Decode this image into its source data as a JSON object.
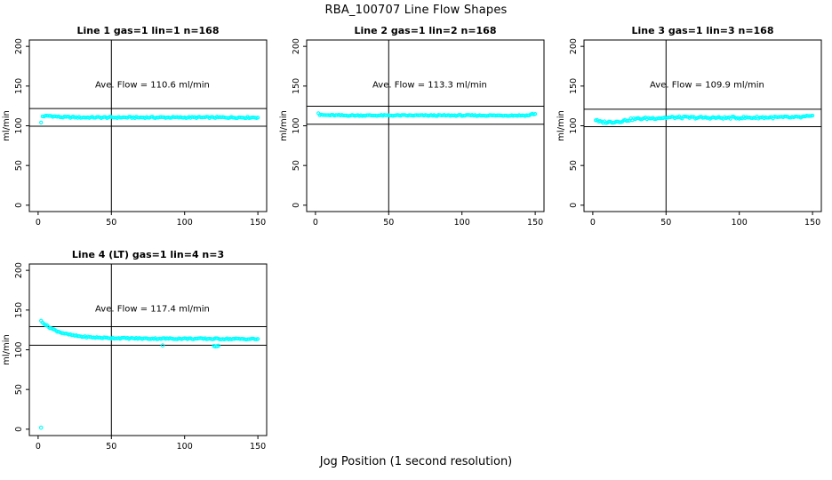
{
  "figure": {
    "title": "RBA_100707  Line Flow Shapes",
    "xlabel": "Jog Position (1 second resolution)",
    "background": "#ffffff",
    "point_color": "#00ffff",
    "line_color": "#000000"
  },
  "chart_data": [
    {
      "type": "scatter",
      "title": "Line 1 gas=1 lin=1 n=168",
      "annotation": "Ave. Flow =  110.6  ml/min",
      "ave_flow": 110.6,
      "ylabel": "ml/min",
      "xticks": [
        0,
        50,
        100,
        150
      ],
      "yticks": [
        0,
        50,
        100,
        150,
        200
      ],
      "xlim": [
        0,
        150
      ],
      "ylim": [
        0,
        200
      ],
      "vline_x": 50,
      "hlines": [
        121.7,
        99.5
      ],
      "x_start": 2,
      "x_end": 150,
      "x_step": 1,
      "noise": 0.9,
      "profile": [
        [
          2,
          104
        ],
        [
          3,
          112
        ],
        [
          8,
          112.5
        ],
        [
          15,
          111
        ],
        [
          30,
          110.5
        ],
        [
          150,
          110.5
        ]
      ],
      "outliers": []
    },
    {
      "type": "scatter",
      "title": "Line 2 gas=1 lin=2 n=168",
      "annotation": "Ave. Flow =  113.3  ml/min",
      "ave_flow": 113.3,
      "ylabel": "ml/min",
      "xticks": [
        0,
        50,
        100,
        150
      ],
      "yticks": [
        0,
        50,
        100,
        150,
        200
      ],
      "xlim": [
        0,
        150
      ],
      "ylim": [
        0,
        200
      ],
      "vline_x": 50,
      "hlines": [
        124.6,
        102.0
      ],
      "x_start": 2,
      "x_end": 150,
      "x_step": 1,
      "noise": 0.7,
      "profile": [
        [
          2,
          116
        ],
        [
          3,
          113.5
        ],
        [
          20,
          113
        ],
        [
          145,
          113
        ],
        [
          148,
          114.8
        ],
        [
          150,
          114.8
        ]
      ],
      "outliers": []
    },
    {
      "type": "scatter",
      "title": "Line 3 gas=1 lin=3 n=168",
      "annotation": "Ave. Flow =  109.9  ml/min",
      "ave_flow": 109.9,
      "ylabel": "ml/min",
      "xticks": [
        0,
        50,
        100,
        150
      ],
      "yticks": [
        0,
        50,
        100,
        150,
        200
      ],
      "xlim": [
        0,
        150
      ],
      "ylim": [
        0,
        200
      ],
      "vline_x": 50,
      "hlines": [
        120.9,
        98.9
      ],
      "x_start": 2,
      "x_end": 150,
      "x_step": 1,
      "noise": 1.4,
      "profile": [
        [
          2,
          107.5
        ],
        [
          4,
          105
        ],
        [
          10,
          104.5
        ],
        [
          18,
          105.5
        ],
        [
          28,
          108.5
        ],
        [
          40,
          109.5
        ],
        [
          55,
          110.5
        ],
        [
          90,
          110
        ],
        [
          120,
          110.5
        ],
        [
          140,
          110.5
        ],
        [
          146,
          111.5
        ],
        [
          150,
          111.5
        ]
      ],
      "outliers": []
    },
    {
      "type": "scatter",
      "title": "Line 4 (LT) gas=1 lin=4 n=3",
      "annotation": "Ave. Flow =  117.4  ml/min",
      "ave_flow": 117.4,
      "ylabel": "ml/min",
      "xticks": [
        0,
        50,
        100,
        150
      ],
      "yticks": [
        0,
        50,
        100,
        150,
        200
      ],
      "xlim": [
        0,
        150
      ],
      "ylim": [
        0,
        200
      ],
      "vline_x": 50,
      "hlines": [
        129.1,
        105.7
      ],
      "x_start": 2,
      "x_end": 150,
      "x_step": 1,
      "noise": 0.8,
      "profile": [
        [
          2,
          136.5
        ],
        [
          3,
          135
        ],
        [
          5,
          131.5
        ],
        [
          7,
          129
        ],
        [
          10,
          126
        ],
        [
          13,
          123.5
        ],
        [
          16,
          121.5
        ],
        [
          20,
          119.5
        ],
        [
          25,
          117.8
        ],
        [
          30,
          116.5
        ],
        [
          38,
          115.5
        ],
        [
          50,
          114.8
        ],
        [
          70,
          114.2
        ],
        [
          100,
          114
        ],
        [
          125,
          113.8
        ],
        [
          150,
          113.5
        ]
      ],
      "outliers": [
        [
          2,
          2
        ],
        [
          85,
          105.5
        ],
        [
          120,
          104.8
        ],
        [
          121,
          104.3
        ],
        [
          122,
          104.5
        ],
        [
          123,
          105
        ]
      ]
    }
  ]
}
